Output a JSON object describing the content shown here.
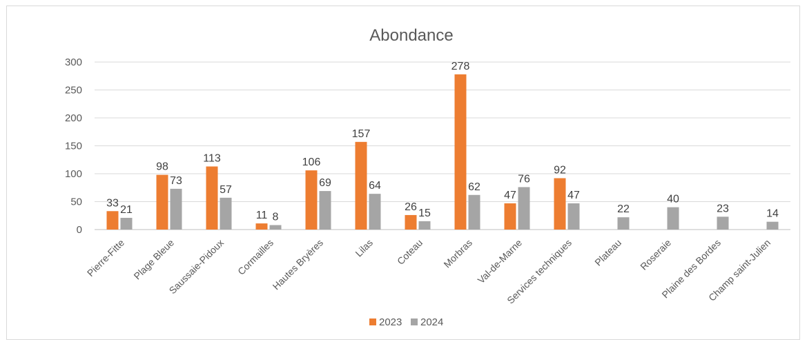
{
  "chart_data": {
    "type": "bar",
    "title": "Abondance",
    "xlabel": "",
    "ylabel": "",
    "ylim": [
      0,
      300
    ],
    "yticks": [
      0,
      50,
      100,
      150,
      200,
      250,
      300
    ],
    "grid": true,
    "legend_position": "bottom",
    "categories": [
      "Pierre-Fitte",
      "Plage Bleue",
      "Saussaie-Pidoux",
      "Cormailles",
      "Hautes Bryères",
      "Lilas",
      "Coteau",
      "Morbras",
      "Val-de-Marne",
      "Services techniques",
      "Plateau",
      "Roseraie",
      "Plaine des Bordes",
      "Champ saint-Julien"
    ],
    "series": [
      {
        "name": "2023",
        "color": "#ed7d31",
        "values": [
          33,
          98,
          113,
          11,
          106,
          157,
          26,
          278,
          47,
          92,
          null,
          null,
          null,
          null
        ]
      },
      {
        "name": "2024",
        "color": "#a5a5a5",
        "values": [
          21,
          73,
          57,
          8,
          69,
          64,
          15,
          62,
          76,
          47,
          22,
          40,
          23,
          14
        ]
      }
    ]
  }
}
